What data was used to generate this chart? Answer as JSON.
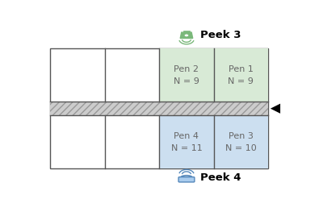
{
  "figure_width": 4.0,
  "figure_height": 2.73,
  "dpi": 100,
  "bg_color": "#ffffff",
  "pen_cells": {
    "Pen 1": {
      "row": 0,
      "col": 3,
      "label": "Pen 1\nN = 9",
      "color": "#d8ead6"
    },
    "Pen 2": {
      "row": 0,
      "col": 2,
      "label": "Pen 2\nN = 9",
      "color": "#d8ead6"
    },
    "Pen 3": {
      "row": 1,
      "col": 3,
      "label": "Pen 3\nN = 10",
      "color": "#ccdff0"
    },
    "Pen 4": {
      "row": 1,
      "col": 2,
      "label": "Pen 4\nN = 11",
      "color": "#ccdff0"
    }
  },
  "corridor_color": "#cccccc",
  "corridor_hatch": "////",
  "peek3_label": "Peek 3",
  "peek4_label": "Peek 4",
  "text_color": "#666666",
  "label_fontsize": 8,
  "green_icon_color": "#7ab87a",
  "blue_icon_color": "#5588bb",
  "border_color": "#555555"
}
